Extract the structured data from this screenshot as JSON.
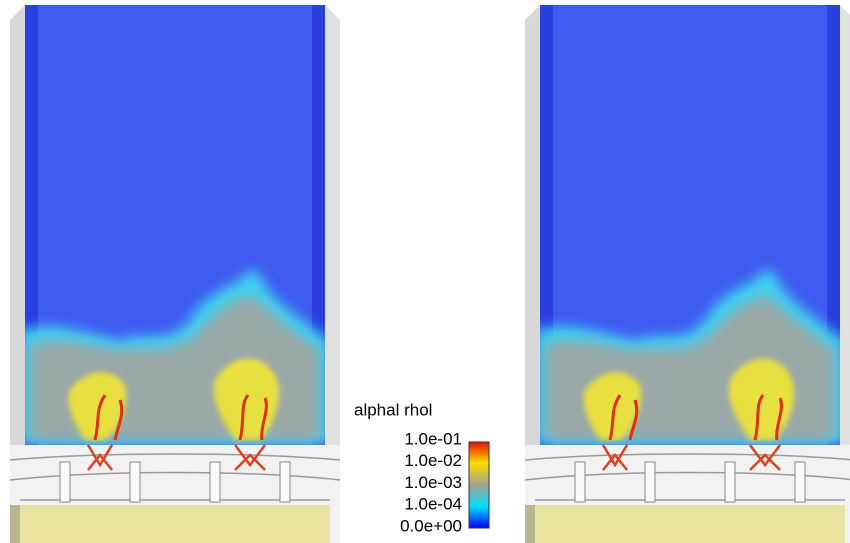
{
  "legend": {
    "title": "alphal rhol",
    "ticks": [
      "1.0e-01",
      "1.0e-02",
      "1.0e-03",
      "1.0e-04",
      "0.0e+00"
    ]
  }
}
